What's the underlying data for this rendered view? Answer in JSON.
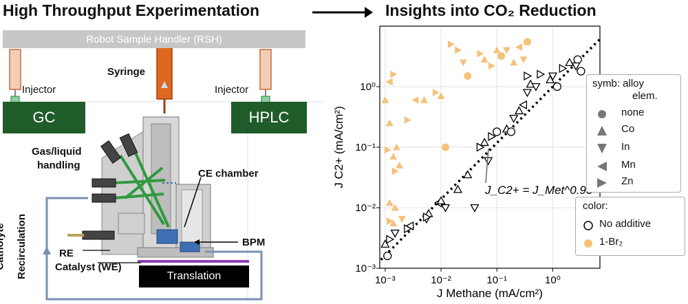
{
  "left_title": "High Throughput Experimentation",
  "right_title": "Insights into CO₂ Reduction",
  "apparatus": {
    "robot_handler": "Robot Sample Handler (RSH)",
    "syringe": "Syringe",
    "injector_left": "Injector",
    "injector_right": "Injector",
    "gc": "GC",
    "hplc": "HPLC",
    "gas_liquid_1": "Gas/liquid",
    "gas_liquid_2": "handling",
    "ce_chamber": "CE chamber",
    "bpm": "BPM",
    "re": "RE",
    "catalyst": "Catalyst (WE)",
    "translation": "Translation",
    "catholyte_1": "Catholyte",
    "catholyte_2": "Recirculation"
  },
  "legend_symbol": {
    "title_1": "symb: alloy",
    "title_2": "elem.",
    "items": [
      {
        "label": "none",
        "marker": "circle"
      },
      {
        "label": "Co",
        "marker": "triangle-up"
      },
      {
        "label": "In",
        "marker": "triangle-down"
      },
      {
        "label": "Mn",
        "marker": "triangle-left"
      },
      {
        "label": "Zn",
        "marker": "triangle-right"
      }
    ]
  },
  "legend_color": {
    "title": "color:",
    "items": [
      {
        "label": "No additive",
        "color": "#000000"
      },
      {
        "label": "1-Br₂",
        "color": "#f5c27a"
      }
    ]
  },
  "fit_annotation": "J_C2+ = J_Met^0.93",
  "chart_data": {
    "type": "scatter",
    "xlabel": "J Methane (mA/cm²)",
    "ylabel": "J C2+ (mA/cm²)",
    "xscale": "log",
    "yscale": "log",
    "xlim": [
      0.0008,
      7
    ],
    "ylim": [
      0.001,
      10
    ],
    "x_ticks": [
      "10⁻³",
      "10⁻²",
      "10⁻¹",
      "10⁰"
    ],
    "y_ticks": [
      "10⁻³",
      "10⁻²",
      "10⁻¹",
      "10⁰"
    ],
    "fit_exponent": 0.93,
    "grid": true,
    "series": [
      {
        "name": "No additive",
        "color": "#000000",
        "filled": false,
        "points": [
          {
            "x": 0.0011,
            "y": 0.0016,
            "m": "circle"
          },
          {
            "x": 0.001,
            "y": 0.0025,
            "m": "triangle-up"
          },
          {
            "x": 0.0012,
            "y": 0.003,
            "m": "triangle-right"
          },
          {
            "x": 0.0015,
            "y": 0.0038,
            "m": "triangle-down"
          },
          {
            "x": 0.0025,
            "y": 0.0045,
            "m": "triangle-right"
          },
          {
            "x": 0.0028,
            "y": 0.005,
            "m": "triangle-left"
          },
          {
            "x": 0.0055,
            "y": 0.0065,
            "m": "triangle-down"
          },
          {
            "x": 0.006,
            "y": 0.008,
            "m": "triangle-up"
          },
          {
            "x": 0.0055,
            "y": 0.007,
            "m": "triangle-right"
          },
          {
            "x": 0.009,
            "y": 0.012,
            "m": "triangle-left"
          },
          {
            "x": 0.01,
            "y": 0.013,
            "m": "triangle-up"
          },
          {
            "x": 0.012,
            "y": 0.01,
            "m": "triangle-down"
          },
          {
            "x": 0.02,
            "y": 0.02,
            "m": "triangle-up"
          },
          {
            "x": 0.03,
            "y": 0.035,
            "m": "triangle-up"
          },
          {
            "x": 0.04,
            "y": 0.01,
            "m": "triangle-down"
          },
          {
            "x": 0.05,
            "y": 0.1,
            "m": "triangle-right"
          },
          {
            "x": 0.06,
            "y": 0.12,
            "m": "triangle-up"
          },
          {
            "x": 0.07,
            "y": 0.06,
            "m": "triangle-down"
          },
          {
            "x": 0.08,
            "y": 0.15,
            "m": "triangle-right"
          },
          {
            "x": 0.1,
            "y": 0.18,
            "m": "circle"
          },
          {
            "x": 0.15,
            "y": 0.2,
            "m": "triangle-up"
          },
          {
            "x": 0.18,
            "y": 0.18,
            "m": "circle"
          },
          {
            "x": 0.2,
            "y": 0.3,
            "m": "triangle-down"
          },
          {
            "x": 0.25,
            "y": 0.4,
            "m": "triangle-up"
          },
          {
            "x": 0.3,
            "y": 0.5,
            "m": "triangle-left"
          },
          {
            "x": 0.35,
            "y": 0.8,
            "m": "triangle-down"
          },
          {
            "x": 0.4,
            "y": 1.1,
            "m": "triangle-up"
          },
          {
            "x": 0.5,
            "y": 1.0,
            "m": "triangle-down"
          },
          {
            "x": 0.35,
            "y": 1.5,
            "m": "triangle-right"
          },
          {
            "x": 0.6,
            "y": 1.6,
            "m": "triangle-right"
          },
          {
            "x": 0.9,
            "y": 1.3,
            "m": "triangle-up"
          },
          {
            "x": 1.0,
            "y": 1.5,
            "m": "triangle-down"
          },
          {
            "x": 1.2,
            "y": 1.0,
            "m": "circle"
          },
          {
            "x": 1.5,
            "y": 2.0,
            "m": "triangle-right"
          },
          {
            "x": 2.0,
            "y": 2.5,
            "m": "triangle-up"
          },
          {
            "x": 2.8,
            "y": 2.8,
            "m": "circle"
          },
          {
            "x": 3.2,
            "y": 1.8,
            "m": "circle"
          },
          {
            "x": 2.6,
            "y": 2.2,
            "m": "triangle-down"
          }
        ]
      },
      {
        "name": "1-Br₂",
        "color": "#f5c27a",
        "filled": true,
        "points": [
          {
            "x": 0.001,
            "y": 0.6,
            "m": "triangle-up"
          },
          {
            "x": 0.0012,
            "y": 1.2,
            "m": "triangle-left"
          },
          {
            "x": 0.0014,
            "y": 1.6,
            "m": "triangle-right"
          },
          {
            "x": 0.0012,
            "y": 0.25,
            "m": "triangle-up"
          },
          {
            "x": 0.0011,
            "y": 0.09,
            "m": "triangle-right"
          },
          {
            "x": 0.0014,
            "y": 0.07,
            "m": "triangle-up"
          },
          {
            "x": 0.0016,
            "y": 0.1,
            "m": "triangle-up"
          },
          {
            "x": 0.0015,
            "y": 0.04,
            "m": "triangle-right"
          },
          {
            "x": 0.0018,
            "y": 0.05,
            "m": "triangle-up"
          },
          {
            "x": 0.0012,
            "y": 0.012,
            "m": "triangle-up"
          },
          {
            "x": 0.0015,
            "y": 0.01,
            "m": "triangle-up"
          },
          {
            "x": 0.0012,
            "y": 0.006,
            "m": "triangle-right"
          },
          {
            "x": 0.0014,
            "y": 0.0055,
            "m": "triangle-up"
          },
          {
            "x": 0.002,
            "y": 0.0065,
            "m": "triangle-down"
          },
          {
            "x": 0.0025,
            "y": 0.28,
            "m": "triangle-right"
          },
          {
            "x": 0.0035,
            "y": 0.6,
            "m": "triangle-left"
          },
          {
            "x": 0.005,
            "y": 0.6,
            "m": "triangle-up"
          },
          {
            "x": 0.008,
            "y": 0.8,
            "m": "triangle-right"
          },
          {
            "x": 0.01,
            "y": 0.7,
            "m": "triangle-up"
          },
          {
            "x": 0.012,
            "y": 0.1,
            "m": "circle"
          },
          {
            "x": 0.015,
            "y": 5.0,
            "m": "triangle-right"
          },
          {
            "x": 0.02,
            "y": 4.0,
            "m": "triangle-right"
          },
          {
            "x": 0.025,
            "y": 2.5,
            "m": "triangle-down"
          },
          {
            "x": 0.03,
            "y": 1.5,
            "m": "circle"
          },
          {
            "x": 0.05,
            "y": 3.5,
            "m": "triangle-right"
          },
          {
            "x": 0.06,
            "y": 2.8,
            "m": "triangle-up"
          },
          {
            "x": 0.08,
            "y": 2.2,
            "m": "triangle-right"
          },
          {
            "x": 0.1,
            "y": 4.0,
            "m": "triangle-up"
          },
          {
            "x": 0.12,
            "y": 3.2,
            "m": "circle"
          },
          {
            "x": 0.15,
            "y": 4.0,
            "m": "triangle-down"
          },
          {
            "x": 0.2,
            "y": 2.5,
            "m": "triangle-up"
          },
          {
            "x": 0.25,
            "y": 4.5,
            "m": "triangle-left"
          },
          {
            "x": 0.3,
            "y": 2.8,
            "m": "triangle-down"
          },
          {
            "x": 0.35,
            "y": 5.5,
            "m": "circle"
          }
        ]
      }
    ]
  }
}
